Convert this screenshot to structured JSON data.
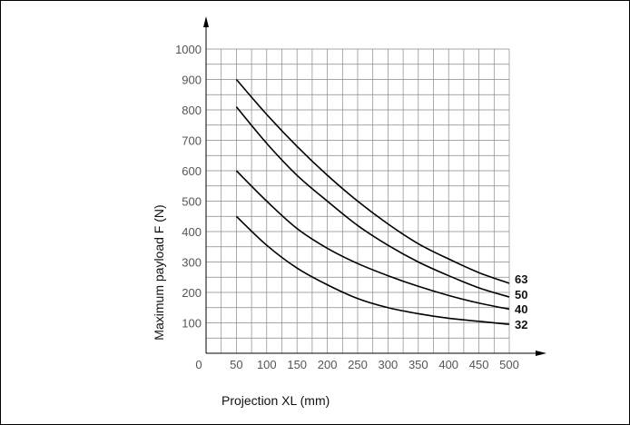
{
  "chart_data": {
    "type": "line",
    "xlabel": "Projection XL (mm)",
    "ylabel": "Maximum payload F (N)",
    "xlim": [
      0,
      500
    ],
    "ylim": [
      0,
      1000
    ],
    "x_ticks": [
      0,
      50,
      100,
      150,
      200,
      250,
      300,
      350,
      400,
      450,
      500
    ],
    "y_ticks": [
      100,
      200,
      300,
      400,
      500,
      600,
      700,
      800,
      900,
      1000
    ],
    "grid": true,
    "grid_minor_step": {
      "x": 25,
      "y": 50
    },
    "series": [
      {
        "name": "63",
        "x": [
          50,
          100,
          150,
          200,
          250,
          300,
          350,
          400,
          450,
          500
        ],
        "values": [
          900,
          785,
          680,
          585,
          500,
          425,
          360,
          310,
          265,
          230
        ]
      },
      {
        "name": "50",
        "x": [
          50,
          100,
          150,
          200,
          250,
          300,
          350,
          400,
          450,
          500
        ],
        "values": [
          810,
          690,
          585,
          500,
          420,
          355,
          300,
          255,
          215,
          185
        ]
      },
      {
        "name": "40",
        "x": [
          50,
          100,
          150,
          200,
          250,
          300,
          350,
          400,
          450,
          500
        ],
        "values": [
          600,
          500,
          410,
          345,
          295,
          255,
          220,
          190,
          165,
          145
        ]
      },
      {
        "name": "32",
        "x": [
          50,
          100,
          150,
          200,
          250,
          300,
          350,
          400,
          450,
          500
        ],
        "values": [
          450,
          355,
          280,
          225,
          180,
          150,
          130,
          115,
          105,
          95
        ]
      }
    ]
  }
}
